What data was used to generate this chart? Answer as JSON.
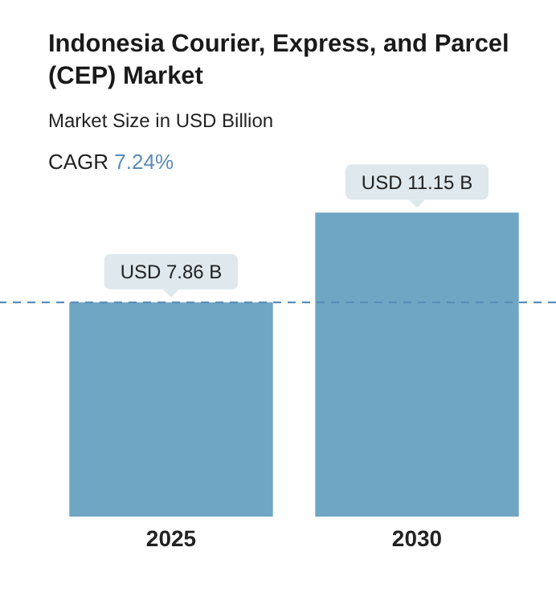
{
  "chart_data": {
    "type": "bar",
    "title": "Indonesia Courier, Express, and Parcel (CEP) Market",
    "subtitle": "Market Size in USD Billion",
    "annotations": [
      "CAGR 7.24%"
    ],
    "categories": [
      "2025",
      "2030"
    ],
    "values": [
      7.86,
      11.15
    ],
    "value_labels": [
      "USD 7.86 B",
      "USD 11.15 B"
    ],
    "color": "#6fa6c4",
    "ref_lines": [
      {
        "axis": "y",
        "value": 7.86,
        "color": "#5b8db8",
        "line_style": "dashed"
      }
    ],
    "grid": false,
    "legend": false
  }
}
